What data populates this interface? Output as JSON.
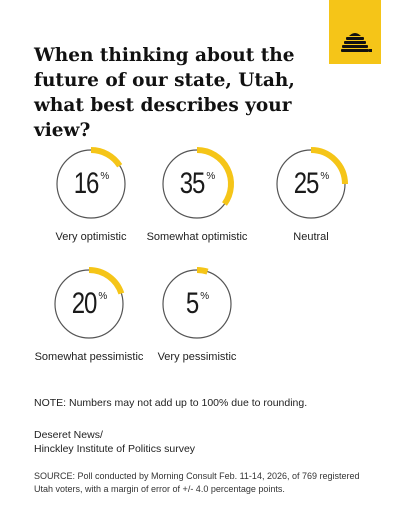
{
  "title": "When thinking about the future of our state, Utah, what best describes your view?",
  "colors": {
    "accent": "#f5c518",
    "ring": "#555555",
    "text": "#1a1a1a"
  },
  "logo_icon": "beehive-icon",
  "chart_data": {
    "type": "pie",
    "title": "When thinking about the future of our state, Utah, what best describes your view?",
    "unit": "%",
    "categories": [
      "Very optimistic",
      "Somewhat optimistic",
      "Neutral",
      "Somewhat pessimistic",
      "Very pessimistic"
    ],
    "values": [
      16,
      35,
      25,
      20,
      5
    ]
  },
  "items": [
    {
      "value": "16",
      "unit": "%",
      "label": "Very optimistic"
    },
    {
      "value": "35",
      "unit": "%",
      "label": "Somewhat optimistic"
    },
    {
      "value": "25",
      "unit": "%",
      "label": "Neutral"
    },
    {
      "value": "20",
      "unit": "%",
      "label": "Somewhat pessimistic"
    },
    {
      "value": "5",
      "unit": "%",
      "label": "Very pessimistic"
    }
  ],
  "note": "NOTE: Numbers may not add up to 100% due to rounding.",
  "credit_line1": "Deseret News/",
  "credit_line2": "Hinckley Institute of Politics survey",
  "source": "SOURCE: Poll conducted by Morning Consult Feb. 11-14, 2026, of 769 registered Utah voters, with a margin of error of +/- 4.0 percentage points."
}
